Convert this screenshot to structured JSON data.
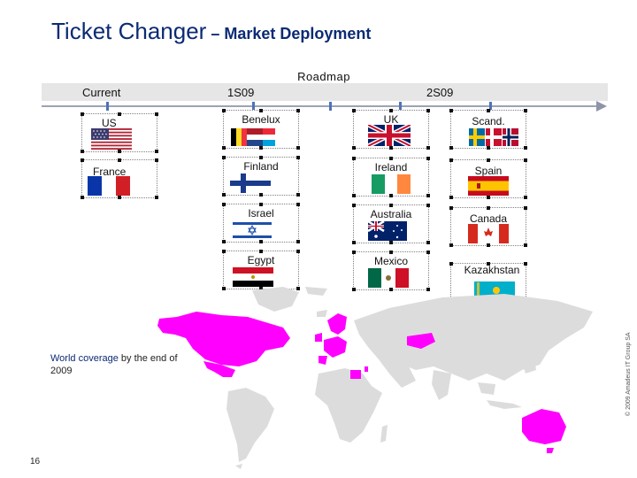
{
  "header": {
    "title_main": "Ticket Changer",
    "title_sub": " – Market Deployment"
  },
  "roadmap": {
    "label": "Roadmap",
    "columns": {
      "current": "Current",
      "s1": "1S09",
      "s2": "2S09"
    }
  },
  "countries": {
    "us": "US",
    "france": "France",
    "benelux": "Benelux",
    "finland": "Finland",
    "israel": "Israel",
    "egypt": "Egypt",
    "uk": "UK",
    "ireland": "Ireland",
    "australia": "Australia",
    "mexico": "Mexico",
    "scand": "Scand.",
    "spain": "Spain",
    "canada": "Canada",
    "kazakhstan": "Kazakhstan"
  },
  "map": {
    "coverage_bold": "World coverage",
    "coverage_rest": " by the end of 2009",
    "highlight_color": "#ff00ff",
    "land_color": "#dcdcdc"
  },
  "footer": {
    "copyright": "© 2009 Amadeus IT Group SA",
    "page_number": "16"
  }
}
